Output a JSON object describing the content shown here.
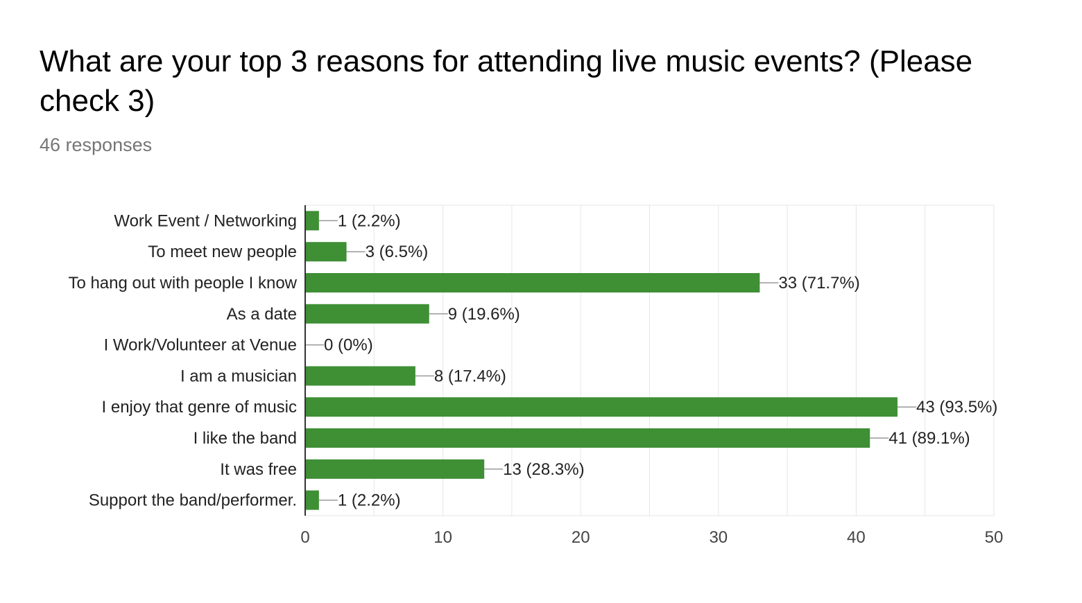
{
  "header": {
    "title": "What are your top 3 reasons for attending live music events? (Please check 3)",
    "responses": "46 responses"
  },
  "colors": {
    "bar": "#3f8f35",
    "grid": "#e6e6e6",
    "axis": "#333333",
    "leader": "#999999"
  },
  "chart_data": {
    "type": "bar",
    "orientation": "horizontal",
    "title": "What are your top 3 reasons for attending live music events? (Please check 3)",
    "subtitle": "46 responses",
    "categories": [
      "Work Event / Networking",
      "To meet new people",
      "To hang out with people I know",
      "As a date",
      "I Work/Volunteer at Venue",
      "I am a musician",
      "I enjoy that genre of music",
      "I like the band",
      "It was free",
      "Support the band/performer."
    ],
    "values": [
      1,
      3,
      33,
      9,
      0,
      8,
      43,
      41,
      13,
      1
    ],
    "data_labels": [
      "1 (2.2%)",
      "3 (6.5%)",
      "33 (71.7%)",
      "9 (19.6%)",
      "0 (0%)",
      "8 (17.4%)",
      "43 (93.5%)",
      "41 (89.1%)",
      "13 (28.3%)",
      "1 (2.2%)"
    ],
    "xlim": [
      0,
      50
    ],
    "xticks": [
      0,
      10,
      20,
      30,
      40,
      50
    ],
    "grid": true,
    "legend": "none"
  }
}
